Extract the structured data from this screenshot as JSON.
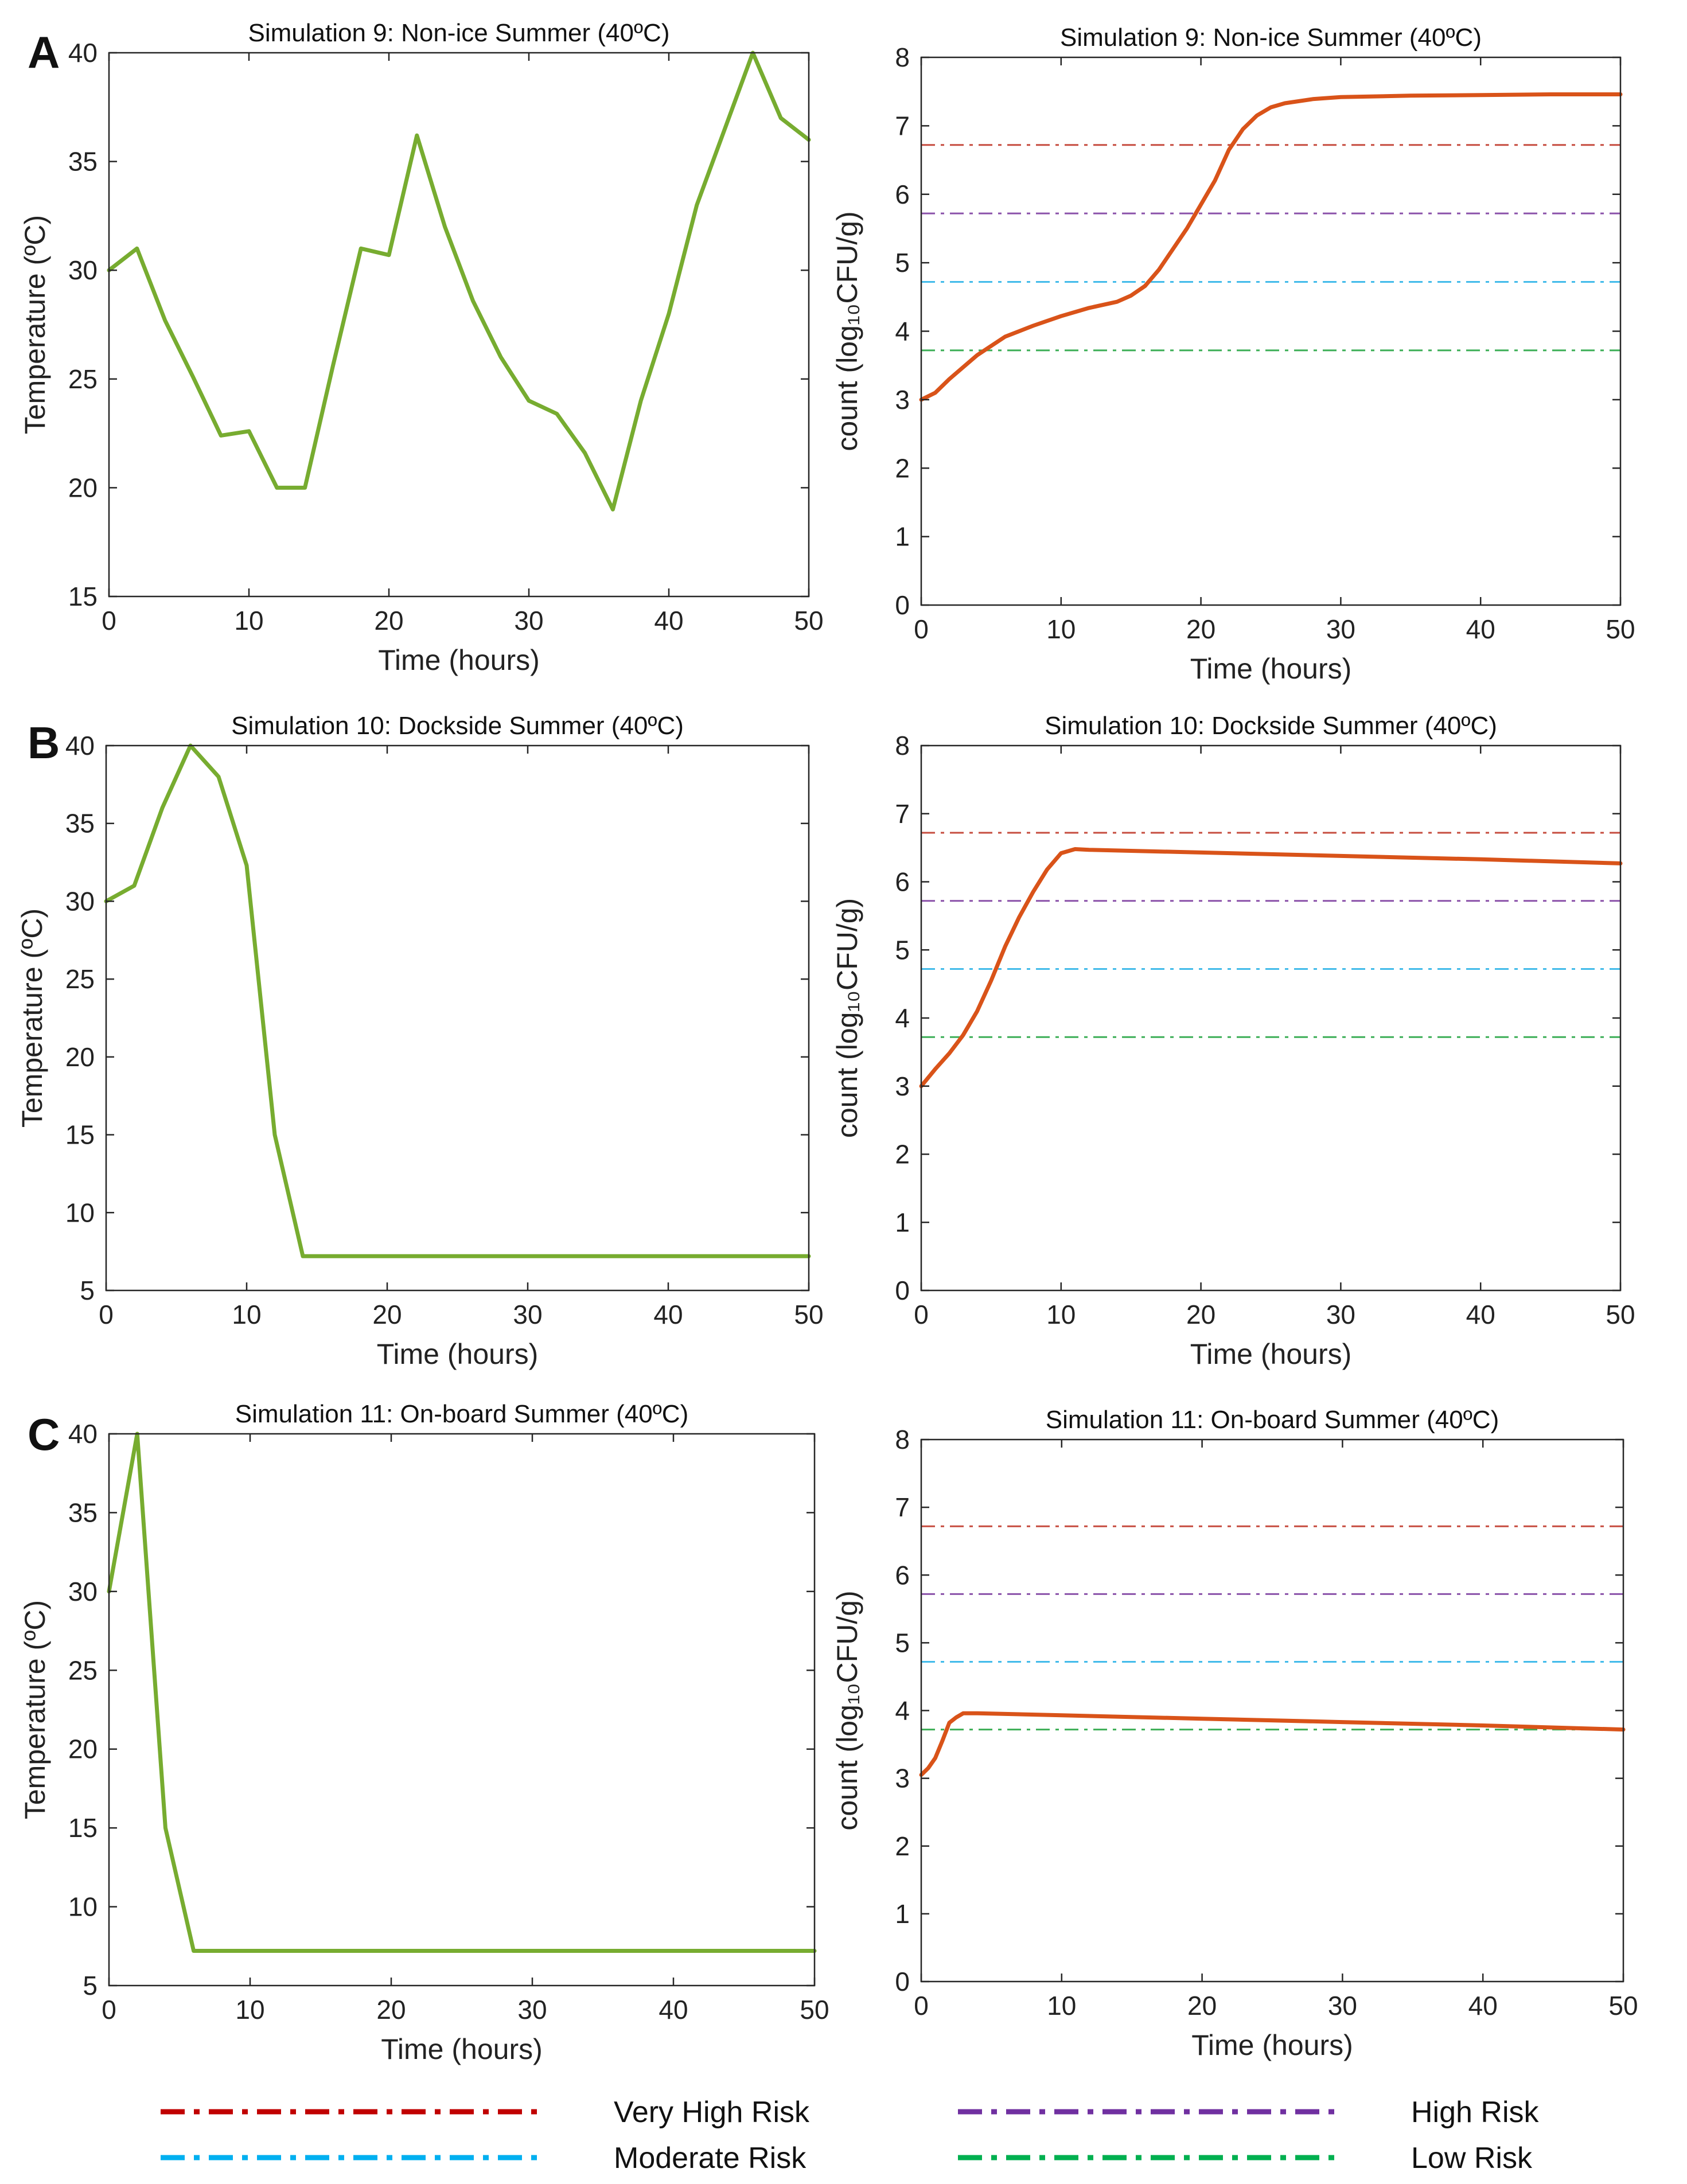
{
  "panel_labels": [
    "A",
    "B",
    "C"
  ],
  "colors": {
    "temperature": "#77AC30",
    "count": "#D95319",
    "very_high": "#C0392B",
    "high": "#7E3FA0",
    "moderate": "#2EB4E8",
    "low": "#27A644",
    "axes": "#262626"
  },
  "legend": {
    "items": [
      {
        "label": "Very High Risk",
        "color": "#C00000"
      },
      {
        "label": "High Risk",
        "color": "#7030A0"
      },
      {
        "label": "Moderate Risk",
        "color": "#00B0F0"
      },
      {
        "label": "Low Risk",
        "color": "#00B050"
      }
    ]
  },
  "chart_data": [
    {
      "id": "9-temp",
      "type": "line",
      "title": "Simulation 9: Non-ice Summer (40ºC)",
      "xlabel": "Time (hours)",
      "ylabel": "Temperature (ºC)",
      "xlim": [
        0,
        50
      ],
      "ylim": [
        15,
        40
      ],
      "xticks": [
        0,
        10,
        20,
        30,
        40,
        50
      ],
      "yticks": [
        15,
        20,
        25,
        30,
        35,
        40
      ],
      "series": [
        {
          "name": "Temperature",
          "color": "#77AC30",
          "x": [
            0,
            2,
            4,
            6,
            8,
            10,
            12,
            14,
            16,
            18,
            20,
            22,
            24,
            26,
            28,
            30,
            32,
            34,
            36,
            38,
            40,
            42,
            44,
            46,
            48,
            50
          ],
          "y": [
            30,
            31,
            27.7,
            25.1,
            22.4,
            22.6,
            20,
            20,
            25.6,
            31,
            30.7,
            36.2,
            32,
            28.6,
            26,
            24,
            23.4,
            21.6,
            19,
            24,
            28,
            33,
            36.5,
            40,
            37,
            36
          ]
        }
      ]
    },
    {
      "id": "9-count",
      "type": "line",
      "title": "Simulation 9: Non-ice Summer (40ºC)",
      "xlabel": "Time (hours)",
      "ylabel": "count (log₁₀CFU/g)",
      "xlim": [
        0,
        50
      ],
      "ylim": [
        0,
        8
      ],
      "xticks": [
        0,
        10,
        20,
        30,
        40,
        50
      ],
      "yticks": [
        0,
        1,
        2,
        3,
        4,
        5,
        6,
        7,
        8
      ],
      "thresholds": [
        6.72,
        5.72,
        4.72,
        3.72
      ],
      "series": [
        {
          "name": "count",
          "color": "#D95319",
          "x": [
            0,
            1,
            2,
            4,
            6,
            8,
            10,
            12,
            14,
            15,
            16,
            17,
            18,
            19,
            20,
            21,
            22,
            23,
            24,
            25,
            26,
            28,
            30,
            35,
            40,
            45,
            50
          ],
          "y": [
            3.0,
            3.1,
            3.3,
            3.65,
            3.92,
            4.08,
            4.22,
            4.34,
            4.43,
            4.52,
            4.66,
            4.9,
            5.2,
            5.5,
            5.85,
            6.2,
            6.65,
            6.95,
            7.15,
            7.27,
            7.33,
            7.39,
            7.42,
            7.44,
            7.45,
            7.46,
            7.46
          ]
        }
      ]
    },
    {
      "id": "10-temp",
      "type": "line",
      "title": "Simulation 10: Dockside Summer (40ºC)",
      "xlabel": "Time (hours)",
      "ylabel": "Temperature (ºC)",
      "xlim": [
        0,
        50
      ],
      "ylim": [
        5,
        40
      ],
      "xticks": [
        0,
        10,
        20,
        30,
        40,
        50
      ],
      "yticks": [
        5,
        10,
        15,
        20,
        25,
        30,
        35,
        40
      ],
      "series": [
        {
          "name": "Temperature",
          "color": "#77AC30",
          "x": [
            0,
            2,
            4,
            6,
            8,
            10,
            12,
            14,
            50
          ],
          "y": [
            30,
            31,
            36,
            40,
            38,
            32.3,
            15,
            7.2,
            7.2
          ]
        }
      ]
    },
    {
      "id": "10-count",
      "type": "line",
      "title": "Simulation 10: Dockside Summer (40ºC)",
      "xlabel": "Time (hours)",
      "ylabel": "count (log₁₀CFU/g)",
      "xlim": [
        0,
        50
      ],
      "ylim": [
        0,
        8
      ],
      "xticks": [
        0,
        10,
        20,
        30,
        40,
        50
      ],
      "yticks": [
        0,
        1,
        2,
        3,
        4,
        5,
        6,
        7,
        8
      ],
      "thresholds": [
        6.72,
        5.72,
        4.72,
        3.72
      ],
      "series": [
        {
          "name": "count",
          "color": "#D95319",
          "x": [
            0,
            1,
            2,
            3,
            4,
            5,
            6,
            7,
            8,
            9,
            10,
            11,
            12,
            20,
            30,
            40,
            50
          ],
          "y": [
            3.0,
            3.25,
            3.48,
            3.75,
            4.1,
            4.55,
            5.05,
            5.48,
            5.85,
            6.18,
            6.42,
            6.48,
            6.47,
            6.43,
            6.38,
            6.33,
            6.27
          ]
        }
      ]
    },
    {
      "id": "11-temp",
      "type": "line",
      "title": "Simulation 11: On-board Summer (40ºC)",
      "xlabel": "Time (hours)",
      "ylabel": "Temperature (ºC)",
      "xlim": [
        0,
        50
      ],
      "ylim": [
        5,
        40
      ],
      "xticks": [
        0,
        10,
        20,
        30,
        40,
        50
      ],
      "yticks": [
        5,
        10,
        15,
        20,
        25,
        30,
        35,
        40
      ],
      "series": [
        {
          "name": "Temperature",
          "color": "#77AC30",
          "x": [
            0,
            2,
            4,
            6,
            50
          ],
          "y": [
            30,
            40,
            15,
            7.2,
            7.2
          ]
        }
      ]
    },
    {
      "id": "11-count",
      "type": "line",
      "title": "Simulation 11: On-board Summer (40ºC)",
      "xlabel": "Time (hours)",
      "ylabel": "count (log₁₀CFU/g)",
      "xlim": [
        0,
        50
      ],
      "ylim": [
        0,
        8
      ],
      "xticks": [
        0,
        10,
        20,
        30,
        40,
        50
      ],
      "yticks": [
        0,
        1,
        2,
        3,
        4,
        5,
        6,
        7,
        8
      ],
      "thresholds": [
        6.72,
        5.72,
        4.72,
        3.72
      ],
      "series": [
        {
          "name": "count",
          "color": "#D95319",
          "x": [
            0,
            0.5,
            1,
            1.5,
            2,
            2.5,
            3,
            4,
            10,
            20,
            30,
            40,
            50
          ],
          "y": [
            3.05,
            3.15,
            3.3,
            3.55,
            3.82,
            3.9,
            3.96,
            3.96,
            3.93,
            3.88,
            3.83,
            3.78,
            3.72
          ]
        }
      ]
    }
  ]
}
